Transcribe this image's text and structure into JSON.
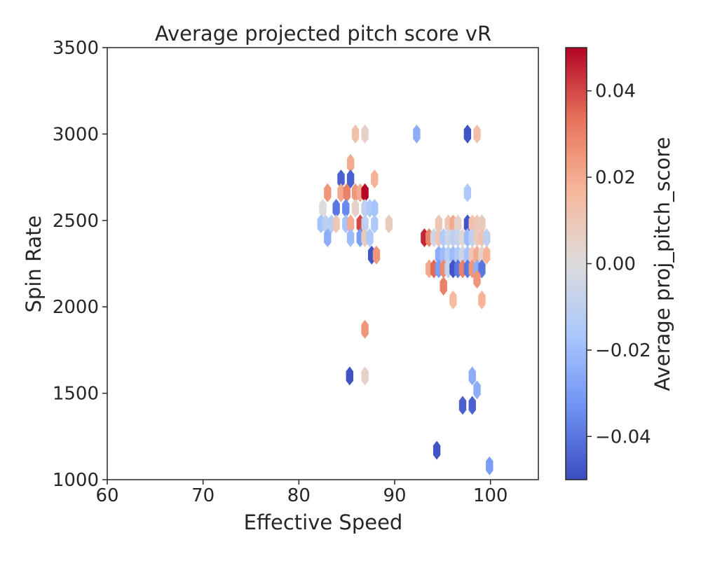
{
  "chart_data": {
    "type": "hexbin",
    "title": "Average projected pitch score vR",
    "xlabel": "Effective Speed",
    "ylabel": "Spin Rate",
    "xlim": [
      60,
      105
    ],
    "ylim": [
      1000,
      3500
    ],
    "xticks": [
      60,
      70,
      80,
      90,
      100
    ],
    "yticks": [
      1000,
      1500,
      2000,
      2500,
      3000,
      3500
    ],
    "colorbar": {
      "label": "Average proj_pitch_score",
      "range": [
        -0.05,
        0.05
      ],
      "ticks": [
        -0.04,
        -0.02,
        0.0,
        0.02,
        0.04
      ],
      "tick_labels": [
        "−0.04",
        "−0.02",
        "0.00",
        "0.02",
        "0.04"
      ],
      "colormap": "coolwarm",
      "colors": [
        "#3b4cc0",
        "#6f92f3",
        "#aac7fd",
        "#dddcdc",
        "#f7b89c",
        "#e7745b",
        "#b40426"
      ]
    },
    "grid": false,
    "bins": [
      {
        "x": 85.9,
        "y": 3000,
        "value": 0.012
      },
      {
        "x": 86.9,
        "y": 3000,
        "value": 0.005
      },
      {
        "x": 92.3,
        "y": 3000,
        "value": -0.025
      },
      {
        "x": 97.6,
        "y": 3000,
        "value": -0.048
      },
      {
        "x": 98.6,
        "y": 3000,
        "value": 0.014
      },
      {
        "x": 85.4,
        "y": 2830,
        "value": 0.02
      },
      {
        "x": 84.4,
        "y": 2740,
        "value": -0.045
      },
      {
        "x": 85.4,
        "y": 2740,
        "value": -0.045
      },
      {
        "x": 87.9,
        "y": 2740,
        "value": 0.018
      },
      {
        "x": 97.6,
        "y": 2660,
        "value": -0.015
      },
      {
        "x": 83.0,
        "y": 2660,
        "value": 0.025
      },
      {
        "x": 84.4,
        "y": 2660,
        "value": 0.02
      },
      {
        "x": 85.0,
        "y": 2660,
        "value": 0.03
      },
      {
        "x": 85.9,
        "y": 2660,
        "value": 0.025
      },
      {
        "x": 86.4,
        "y": 2660,
        "value": 0.02
      },
      {
        "x": 86.9,
        "y": 2660,
        "value": 0.05
      },
      {
        "x": 82.5,
        "y": 2570,
        "value": 0.0
      },
      {
        "x": 83.9,
        "y": 2570,
        "value": -0.04
      },
      {
        "x": 84.9,
        "y": 2570,
        "value": -0.035
      },
      {
        "x": 85.9,
        "y": 2570,
        "value": 0.005
      },
      {
        "x": 86.9,
        "y": 2570,
        "value": -0.01
      },
      {
        "x": 87.4,
        "y": 2570,
        "value": -0.015
      },
      {
        "x": 87.9,
        "y": 2570,
        "value": -0.018
      },
      {
        "x": 82.3,
        "y": 2480,
        "value": -0.018
      },
      {
        "x": 82.8,
        "y": 2480,
        "value": -0.01
      },
      {
        "x": 83.4,
        "y": 2480,
        "value": -0.012
      },
      {
        "x": 83.9,
        "y": 2480,
        "value": 0.01
      },
      {
        "x": 84.9,
        "y": 2480,
        "value": -0.018
      },
      {
        "x": 85.4,
        "y": 2480,
        "value": 0.02
      },
      {
        "x": 86.4,
        "y": 2480,
        "value": 0.04
      },
      {
        "x": 86.9,
        "y": 2480,
        "value": -0.01
      },
      {
        "x": 87.9,
        "y": 2480,
        "value": -0.015
      },
      {
        "x": 89.4,
        "y": 2480,
        "value": 0.008
      },
      {
        "x": 97.6,
        "y": 2480,
        "value": -0.048
      },
      {
        "x": 98.1,
        "y": 2480,
        "value": 0.012
      },
      {
        "x": 98.6,
        "y": 2480,
        "value": 0.01
      },
      {
        "x": 99.1,
        "y": 2480,
        "value": 0.008
      },
      {
        "x": 95.6,
        "y": 2480,
        "value": 0.01
      },
      {
        "x": 96.1,
        "y": 2480,
        "value": 0.02
      },
      {
        "x": 96.6,
        "y": 2480,
        "value": 0.005
      },
      {
        "x": 94.6,
        "y": 2480,
        "value": 0.01
      },
      {
        "x": 83.0,
        "y": 2400,
        "value": -0.025
      },
      {
        "x": 85.4,
        "y": 2400,
        "value": -0.02
      },
      {
        "x": 86.4,
        "y": 2400,
        "value": -0.03
      },
      {
        "x": 86.9,
        "y": 2400,
        "value": 0.008
      },
      {
        "x": 87.4,
        "y": 2400,
        "value": -0.015
      },
      {
        "x": 93.1,
        "y": 2400,
        "value": 0.045
      },
      {
        "x": 93.6,
        "y": 2400,
        "value": 0.03
      },
      {
        "x": 94.1,
        "y": 2400,
        "value": -0.005
      },
      {
        "x": 94.6,
        "y": 2400,
        "value": 0.01
      },
      {
        "x": 95.1,
        "y": 2400,
        "value": -0.015
      },
      {
        "x": 95.6,
        "y": 2400,
        "value": -0.005
      },
      {
        "x": 96.1,
        "y": 2400,
        "value": -0.01
      },
      {
        "x": 96.6,
        "y": 2400,
        "value": -0.008
      },
      {
        "x": 97.1,
        "y": 2400,
        "value": 0.002
      },
      {
        "x": 97.6,
        "y": 2400,
        "value": -0.02
      },
      {
        "x": 98.1,
        "y": 2400,
        "value": -0.01
      },
      {
        "x": 98.6,
        "y": 2400,
        "value": 0.008
      },
      {
        "x": 99.1,
        "y": 2400,
        "value": 0.012
      },
      {
        "x": 99.6,
        "y": 2400,
        "value": -0.01
      },
      {
        "x": 87.6,
        "y": 2300,
        "value": -0.048
      },
      {
        "x": 88.1,
        "y": 2300,
        "value": 0.025
      },
      {
        "x": 94.6,
        "y": 2300,
        "value": -0.025
      },
      {
        "x": 95.1,
        "y": 2300,
        "value": -0.02
      },
      {
        "x": 95.6,
        "y": 2300,
        "value": -0.012
      },
      {
        "x": 96.1,
        "y": 2300,
        "value": -0.02
      },
      {
        "x": 96.6,
        "y": 2300,
        "value": -0.015
      },
      {
        "x": 97.1,
        "y": 2300,
        "value": -0.005
      },
      {
        "x": 97.6,
        "y": 2300,
        "value": -0.018
      },
      {
        "x": 98.1,
        "y": 2300,
        "value": 0.01
      },
      {
        "x": 98.6,
        "y": 2300,
        "value": 0.02
      },
      {
        "x": 99.1,
        "y": 2300,
        "value": 0.005
      },
      {
        "x": 99.6,
        "y": 2300,
        "value": 0.018
      },
      {
        "x": 93.6,
        "y": 2220,
        "value": 0.02
      },
      {
        "x": 94.1,
        "y": 2220,
        "value": 0.035
      },
      {
        "x": 94.6,
        "y": 2220,
        "value": -0.03
      },
      {
        "x": 95.1,
        "y": 2220,
        "value": 0.028
      },
      {
        "x": 95.6,
        "y": 2220,
        "value": -0.008
      },
      {
        "x": 96.1,
        "y": 2220,
        "value": -0.048
      },
      {
        "x": 96.6,
        "y": 2220,
        "value": -0.04
      },
      {
        "x": 97.1,
        "y": 2220,
        "value": 0.03
      },
      {
        "x": 97.6,
        "y": 2220,
        "value": -0.04
      },
      {
        "x": 98.1,
        "y": 2220,
        "value": 0.025
      },
      {
        "x": 98.6,
        "y": 2220,
        "value": -0.025
      },
      {
        "x": 99.1,
        "y": 2220,
        "value": -0.04
      },
      {
        "x": 95.1,
        "y": 2120,
        "value": 0.03
      },
      {
        "x": 98.6,
        "y": 2160,
        "value": 0.025
      },
      {
        "x": 96.1,
        "y": 2040,
        "value": 0.015
      },
      {
        "x": 99.1,
        "y": 2040,
        "value": 0.018
      },
      {
        "x": 86.9,
        "y": 1870,
        "value": 0.025
      },
      {
        "x": 85.3,
        "y": 1600,
        "value": -0.048
      },
      {
        "x": 86.9,
        "y": 1600,
        "value": 0.005
      },
      {
        "x": 98.1,
        "y": 1600,
        "value": -0.025
      },
      {
        "x": 98.6,
        "y": 1520,
        "value": -0.025
      },
      {
        "x": 97.1,
        "y": 1430,
        "value": -0.045
      },
      {
        "x": 98.1,
        "y": 1430,
        "value": -0.045
      },
      {
        "x": 94.4,
        "y": 1170,
        "value": -0.048
      },
      {
        "x": 99.9,
        "y": 1080,
        "value": -0.03
      }
    ]
  }
}
